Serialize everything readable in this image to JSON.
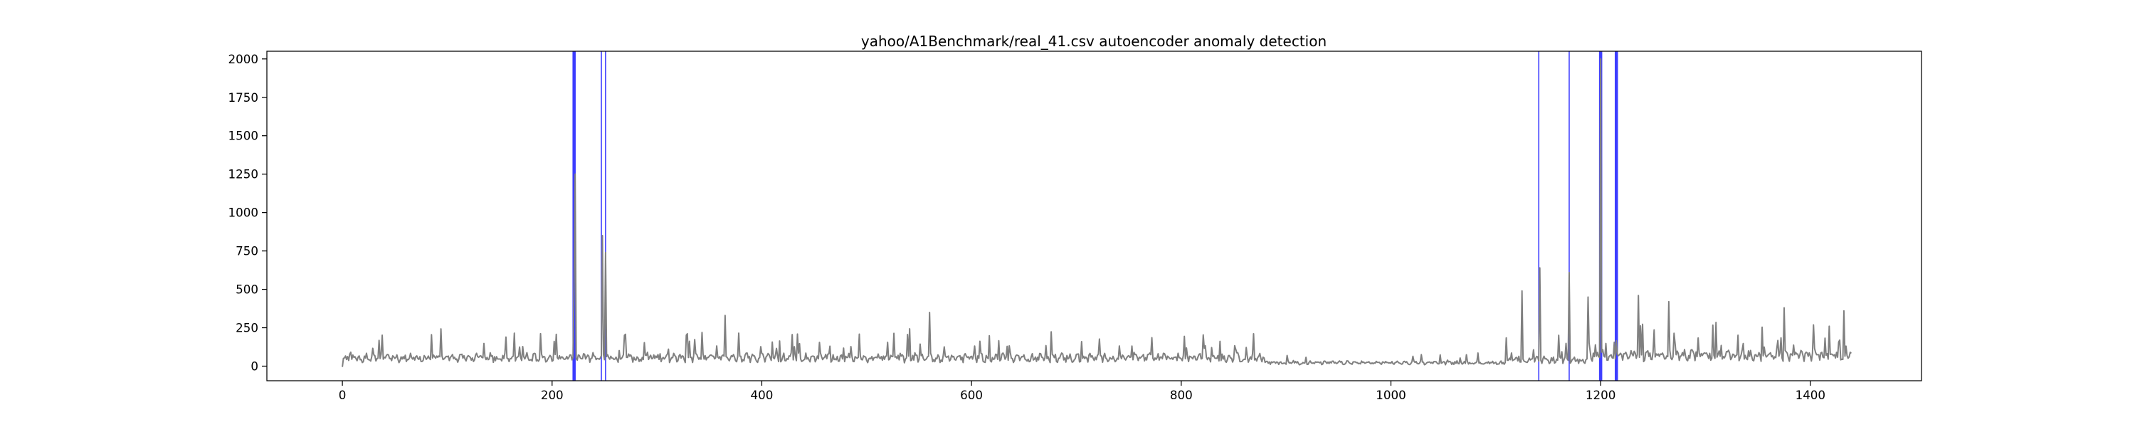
{
  "chart_data": {
    "type": "line",
    "title": "yahoo/A1Benchmark/real_41.csv autoencoder anomaly detection",
    "xlabel": "",
    "ylabel": "",
    "xlim": [
      -72,
      1506
    ],
    "ylim": [
      -95,
      2050
    ],
    "grid": false,
    "series_color": "#808080",
    "anomaly_color": "#0000ff",
    "x_ticks": [
      0,
      200,
      400,
      600,
      800,
      1000,
      1200,
      1400
    ],
    "x_tick_labels": [
      "0",
      "200",
      "400",
      "600",
      "800",
      "1000",
      "1200",
      "1400"
    ],
    "y_ticks": [
      0,
      250,
      500,
      750,
      1000,
      1250,
      1500,
      1750,
      2000
    ],
    "y_tick_labels": [
      "0",
      "250",
      "500",
      "750",
      "1000",
      "1250",
      "1500",
      "1750",
      "2000"
    ],
    "n_points": 1440,
    "x_range": [
      0,
      1439
    ],
    "peaks": [
      {
        "x": 221,
        "y": 560
      },
      {
        "x": 222,
        "y": 1250
      },
      {
        "x": 248,
        "y": 850
      },
      {
        "x": 251,
        "y": 740
      },
      {
        "x": 365,
        "y": 330
      },
      {
        "x": 560,
        "y": 350
      },
      {
        "x": 1125,
        "y": 490
      },
      {
        "x": 1142,
        "y": 640
      },
      {
        "x": 1170,
        "y": 610
      },
      {
        "x": 1188,
        "y": 450
      },
      {
        "x": 1200,
        "y": 2000
      },
      {
        "x": 1236,
        "y": 460
      },
      {
        "x": 1265,
        "y": 420
      },
      {
        "x": 1375,
        "y": 380
      },
      {
        "x": 1432,
        "y": 360
      }
    ],
    "anomaly_x": [
      220,
      221,
      222,
      247,
      251,
      1141,
      1170,
      1199,
      1200,
      1201,
      1214,
      1215,
      1216
    ]
  }
}
